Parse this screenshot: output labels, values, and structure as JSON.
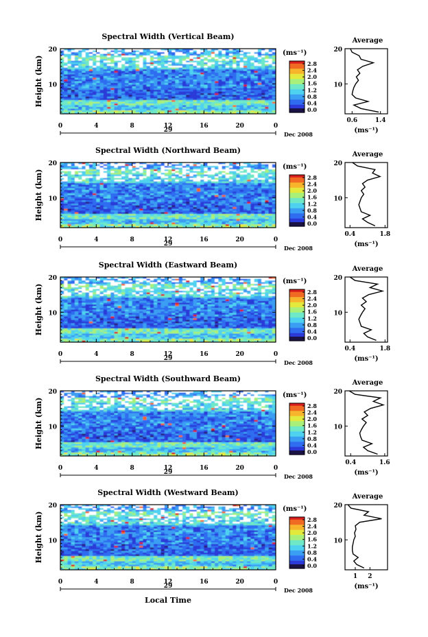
{
  "figure": {
    "xlabel": "Local Time",
    "colorbar_unit": "(ms⁻¹)",
    "average_title": "Average",
    "average_unit": "(ms⁻¹)",
    "date_label": "Dec 2008",
    "day_label": "29",
    "ylabel": "Height (km)",
    "colormap": [
      "#2a1e7a",
      "#2b3ad8",
      "#2f6cf0",
      "#3a9ef2",
      "#4fd1f0",
      "#6ee8c6",
      "#a8f07a",
      "#e4e93e",
      "#f6b52c",
      "#f06a24",
      "#d81e1c"
    ]
  },
  "chart_data": [
    {
      "type": "heatmap",
      "title": "Spectral Width (Vertical Beam)",
      "xlabel": "Local Time",
      "ylabel": "Height (km)",
      "x_ticks": [
        "0",
        "4",
        "8",
        "12",
        "16",
        "20",
        "0"
      ],
      "y_ticks": [
        "20",
        "10"
      ],
      "xlim": [
        0,
        24
      ],
      "ylim": [
        1.5,
        20
      ],
      "colorbar": {
        "ticks": [
          "2.8",
          "2.4",
          "2.0",
          "1.6",
          "1.2",
          "0.8",
          "0.4",
          "0.0"
        ],
        "range": [
          0,
          2.8
        ]
      },
      "average": {
        "title": "Average",
        "xlabel": "(ms⁻¹)",
        "x_ticks": [
          "0.6",
          "1.4"
        ],
        "xlim": [
          0.4,
          1.6
        ],
        "height_km": [
          2,
          3,
          4,
          5,
          6,
          7,
          8,
          9,
          10,
          11,
          12,
          13,
          14,
          15,
          16,
          17,
          18,
          19,
          20
        ],
        "width_ms": [
          1.35,
          0.85,
          0.65,
          1.05,
          0.7,
          0.6,
          0.62,
          0.65,
          0.7,
          0.78,
          0.72,
          0.82,
          0.75,
          0.9,
          1.2,
          0.85,
          0.8,
          0.6,
          0.55
        ]
      }
    },
    {
      "type": "heatmap",
      "title": "Spectral Width (Northward Beam)",
      "xlabel": "Local Time",
      "ylabel": "Height (km)",
      "x_ticks": [
        "0",
        "4",
        "8",
        "12",
        "16",
        "20",
        "0"
      ],
      "y_ticks": [
        "20",
        "10"
      ],
      "xlim": [
        0,
        24
      ],
      "ylim": [
        1.5,
        20
      ],
      "colorbar": {
        "ticks": [
          "2.8",
          "2.4",
          "2.0",
          "1.6",
          "1.2",
          "0.8",
          "0.4",
          "0.0"
        ],
        "range": [
          0,
          2.8
        ]
      },
      "average": {
        "title": "Average",
        "xlabel": "(ms⁻¹)",
        "x_ticks": [
          "0.4",
          "1.8"
        ],
        "xlim": [
          0.2,
          1.9
        ],
        "height_km": [
          2,
          3,
          4,
          5,
          6,
          7,
          8,
          9,
          10,
          11,
          12,
          13,
          14,
          15,
          16,
          17,
          18,
          19,
          20
        ],
        "width_ms": [
          1.4,
          1.1,
          0.9,
          1.2,
          0.85,
          0.8,
          0.75,
          0.8,
          0.85,
          0.95,
          0.85,
          1.0,
          0.9,
          1.1,
          1.6,
          1.3,
          1.4,
          0.7,
          0.5
        ]
      }
    },
    {
      "type": "heatmap",
      "title": "Spectral Width (Eastward Beam)",
      "xlabel": "Local Time",
      "ylabel": "Height (km)",
      "x_ticks": [
        "0",
        "4",
        "8",
        "12",
        "16",
        "20",
        "0"
      ],
      "y_ticks": [
        "20",
        "10"
      ],
      "xlim": [
        0,
        24
      ],
      "ylim": [
        1.5,
        20
      ],
      "colorbar": {
        "ticks": [
          "2.8",
          "2.4",
          "2.0",
          "1.6",
          "1.2",
          "0.8",
          "0.4",
          "0.0"
        ],
        "range": [
          0,
          2.8
        ]
      },
      "average": {
        "title": "Average",
        "xlabel": "(ms⁻¹)",
        "x_ticks": [
          "0.4",
          "1.8"
        ],
        "xlim": [
          0.2,
          1.9
        ],
        "height_km": [
          2,
          3,
          4,
          5,
          6,
          7,
          8,
          9,
          10,
          11,
          12,
          13,
          14,
          15,
          16,
          17,
          18,
          19,
          20
        ],
        "width_ms": [
          1.45,
          1.1,
          0.95,
          1.25,
          0.85,
          0.8,
          0.75,
          0.82,
          0.9,
          1.0,
          0.85,
          1.05,
          0.9,
          1.15,
          1.7,
          1.2,
          1.5,
          0.6,
          0.4
        ]
      }
    },
    {
      "type": "heatmap",
      "title": "Spectral Width (Southward Beam)",
      "xlabel": "Local Time",
      "ylabel": "Height (km)",
      "x_ticks": [
        "0",
        "4",
        "8",
        "12",
        "16",
        "20",
        "0"
      ],
      "y_ticks": [
        "20",
        "10"
      ],
      "xlim": [
        0,
        24
      ],
      "ylim": [
        1.5,
        20
      ],
      "colorbar": {
        "ticks": [
          "2.8",
          "2.4",
          "2.0",
          "1.6",
          "1.2",
          "0.8",
          "0.4",
          "0.0"
        ],
        "range": [
          0,
          2.8
        ]
      },
      "average": {
        "title": "Average",
        "xlabel": "(ms⁻¹)",
        "x_ticks": [
          "0.4",
          "1.6"
        ],
        "xlim": [
          0.2,
          1.7
        ],
        "height_km": [
          2,
          3,
          4,
          5,
          6,
          7,
          8,
          9,
          10,
          11,
          12,
          13,
          14,
          15,
          16,
          17,
          18,
          19,
          20
        ],
        "width_ms": [
          1.35,
          1.0,
          0.85,
          1.15,
          0.8,
          0.75,
          0.72,
          0.78,
          0.85,
          0.95,
          0.8,
          1.0,
          0.88,
          1.1,
          1.55,
          1.2,
          1.45,
          0.55,
          0.35
        ]
      }
    },
    {
      "type": "heatmap",
      "title": "Spectral Width (Westward Beam)",
      "xlabel": "Local Time",
      "ylabel": "Height (km)",
      "x_ticks": [
        "0",
        "4",
        "8",
        "12",
        "16",
        "20",
        "0"
      ],
      "y_ticks": [
        "20",
        "10"
      ],
      "xlim": [
        0,
        24
      ],
      "ylim": [
        1.5,
        20
      ],
      "colorbar": {
        "ticks": [
          "2.8",
          "2.4",
          "2.0",
          "1.6",
          "1.2",
          "0.8",
          "0.4",
          "0.0"
        ],
        "range": [
          0,
          2.8
        ]
      },
      "average": {
        "title": "Average",
        "xlabel": "(ms⁻¹)",
        "x_ticks": [
          "1",
          "2"
        ],
        "xlim": [
          0.3,
          3.2
        ],
        "height_km": [
          2,
          3,
          4,
          5,
          6,
          7,
          8,
          9,
          10,
          11,
          12,
          13,
          14,
          15,
          16,
          17,
          18,
          19,
          20
        ],
        "width_ms": [
          1.6,
          1.1,
          0.9,
          1.2,
          0.85,
          0.8,
          0.8,
          0.85,
          0.9,
          1.0,
          0.95,
          1.05,
          1.0,
          1.3,
          2.8,
          1.6,
          1.9,
          0.7,
          0.5
        ]
      }
    }
  ]
}
